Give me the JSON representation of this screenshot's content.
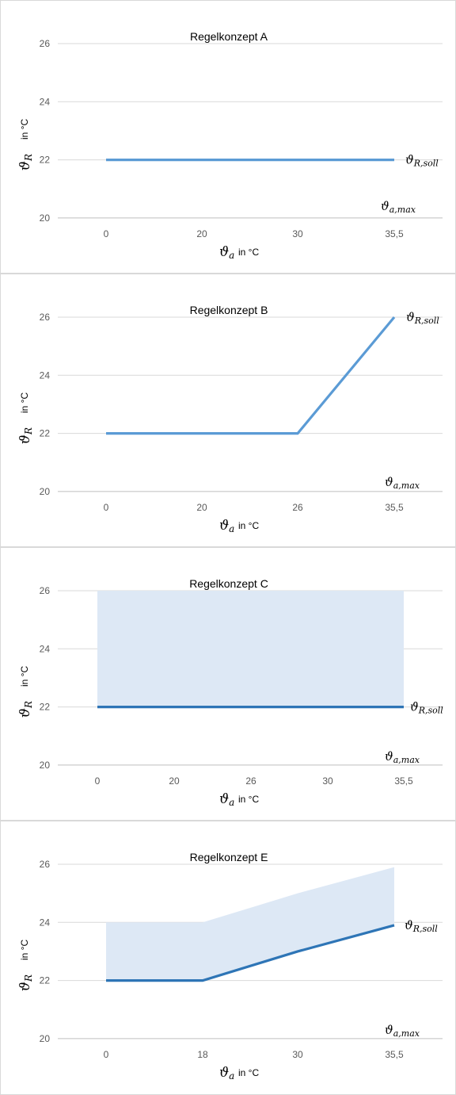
{
  "chart_data": [
    {
      "type": "line",
      "title": "Regelkonzept A",
      "xlabel": {
        "symbol": "ϑ",
        "sub": "a",
        "unit": "in °C"
      },
      "ylabel": {
        "symbol": "ϑ",
        "sub": "R",
        "unit": "in °C"
      },
      "categories": [
        "0",
        "20",
        "30",
        "35,5"
      ],
      "yticks": [
        20,
        22,
        24,
        26
      ],
      "ylim": [
        20,
        27
      ],
      "grid": true,
      "series": [
        {
          "name": "ϑR,soll",
          "values": [
            22,
            22,
            22,
            22
          ]
        }
      ],
      "series_label": {
        "symbol": "ϑ",
        "sub": "R,soll"
      },
      "max_label": {
        "symbol": "ϑ",
        "sub": "a,max"
      },
      "band": null,
      "colors": {
        "line": "#5b9bd5"
      }
    },
    {
      "type": "line",
      "title": "Regelkonzept B",
      "xlabel": {
        "symbol": "ϑ",
        "sub": "a",
        "unit": "in °C"
      },
      "ylabel": {
        "symbol": "ϑ",
        "sub": "R",
        "unit": "in °C"
      },
      "categories": [
        "0",
        "20",
        "26",
        "35,5"
      ],
      "yticks": [
        20,
        22,
        24,
        26
      ],
      "ylim": [
        20,
        27
      ],
      "grid": true,
      "series": [
        {
          "name": "ϑR,soll",
          "values": [
            22,
            22,
            22,
            26
          ]
        }
      ],
      "series_label": {
        "symbol": "ϑ",
        "sub": "R,soll"
      },
      "max_label": {
        "symbol": "ϑ",
        "sub": "a,max"
      },
      "band": null,
      "colors": {
        "line": "#5b9bd5"
      }
    },
    {
      "type": "area",
      "title": "Regelkonzept C",
      "xlabel": {
        "symbol": "ϑ",
        "sub": "a",
        "unit": "in °C"
      },
      "ylabel": {
        "symbol": "ϑ",
        "sub": "R",
        "unit": "in °C"
      },
      "categories": [
        "0",
        "20",
        "26",
        "30",
        "35,5"
      ],
      "yticks": [
        20,
        22,
        24,
        26
      ],
      "ylim": [
        20,
        27
      ],
      "grid": true,
      "series": [
        {
          "name": "ϑR,soll",
          "values": [
            22,
            22,
            22,
            22,
            22
          ]
        }
      ],
      "series_label": {
        "symbol": "ϑ",
        "sub": "R,soll"
      },
      "max_label": {
        "symbol": "ϑ",
        "sub": "a,max"
      },
      "band": {
        "lower": [
          22,
          22,
          22,
          22,
          22
        ],
        "upper": [
          26,
          26,
          26,
          26,
          26
        ],
        "extend": "edge"
      },
      "colors": {
        "line": "#2e75b6",
        "band": "#dde8f5"
      }
    },
    {
      "type": "area",
      "title": "Regelkonzept E",
      "xlabel": {
        "symbol": "ϑ",
        "sub": "a",
        "unit": "in °C"
      },
      "ylabel": {
        "symbol": "ϑ",
        "sub": "R",
        "unit": "in °C"
      },
      "categories": [
        "0",
        "18",
        "30",
        "35,5"
      ],
      "yticks": [
        20,
        22,
        24,
        26
      ],
      "ylim": [
        20,
        27
      ],
      "grid": true,
      "series": [
        {
          "name": "ϑR,soll",
          "values": [
            22,
            22,
            23,
            23.9
          ]
        }
      ],
      "series_label": {
        "symbol": "ϑ",
        "sub": "R,soll"
      },
      "max_label": {
        "symbol": "ϑ",
        "sub": "a,max"
      },
      "band": {
        "lower": [
          22,
          22,
          23,
          23.9
        ],
        "upper": [
          24,
          24,
          25,
          25.9
        ],
        "extend": "center"
      },
      "colors": {
        "line": "#2e75b6",
        "band": "#dde8f5"
      }
    }
  ]
}
